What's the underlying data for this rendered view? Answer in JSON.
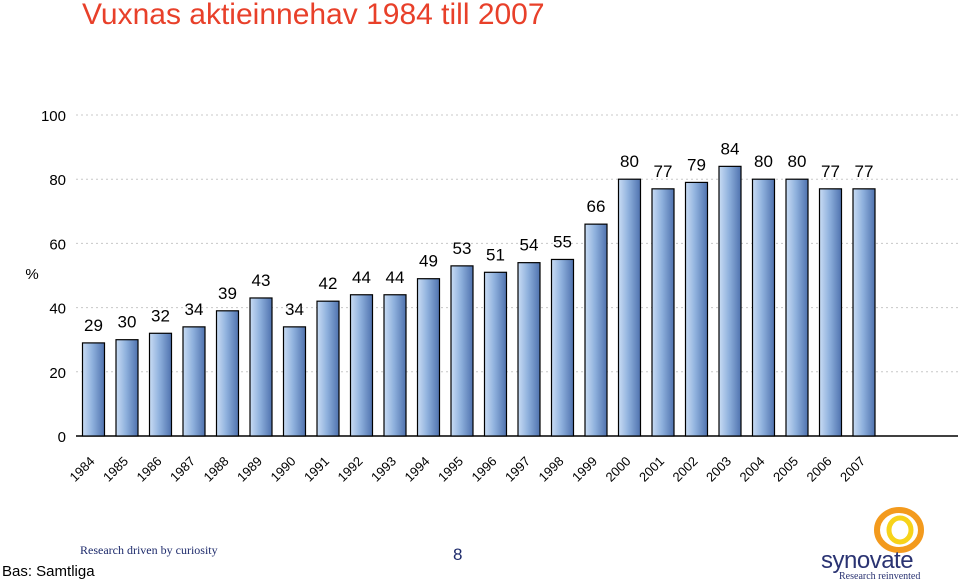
{
  "slide": {
    "title": "Vuxnas aktieinnehav 1984 till 2007",
    "basis": "Bas: Samtliga",
    "tagline": "Research driven by curiosity",
    "page_number": "8",
    "logo": {
      "name": "synovate",
      "subtitle": "Research reinvented"
    }
  },
  "colors": {
    "title": "#e8402a",
    "bar_light": "#c9dcf4",
    "bar_mid": "#8fb1dd",
    "bar_dark": "#4f72ae",
    "grid": "#c8c8c8",
    "logo_ring_outer": "#f39a1d",
    "logo_ring_inner": "#f7d31a"
  },
  "chart_data": {
    "type": "bar",
    "categories": [
      "1984",
      "1985",
      "1986",
      "1987",
      "1988",
      "1989",
      "1990",
      "1991",
      "1992",
      "1993",
      "1994",
      "1995",
      "1996",
      "1997",
      "1998",
      "1999",
      "2000",
      "2001",
      "2002",
      "2003",
      "2004",
      "2005",
      "2006",
      "2007"
    ],
    "values": [
      29,
      30,
      32,
      34,
      39,
      43,
      34,
      42,
      44,
      44,
      49,
      53,
      51,
      54,
      55,
      66,
      80,
      77,
      79,
      84,
      80,
      80,
      77,
      77
    ],
    "ylabel": "%",
    "ylim": [
      0,
      100
    ],
    "yticks": [
      0,
      20,
      40,
      60,
      80,
      100
    ],
    "grid": true,
    "data_labels": true,
    "legend": false
  }
}
